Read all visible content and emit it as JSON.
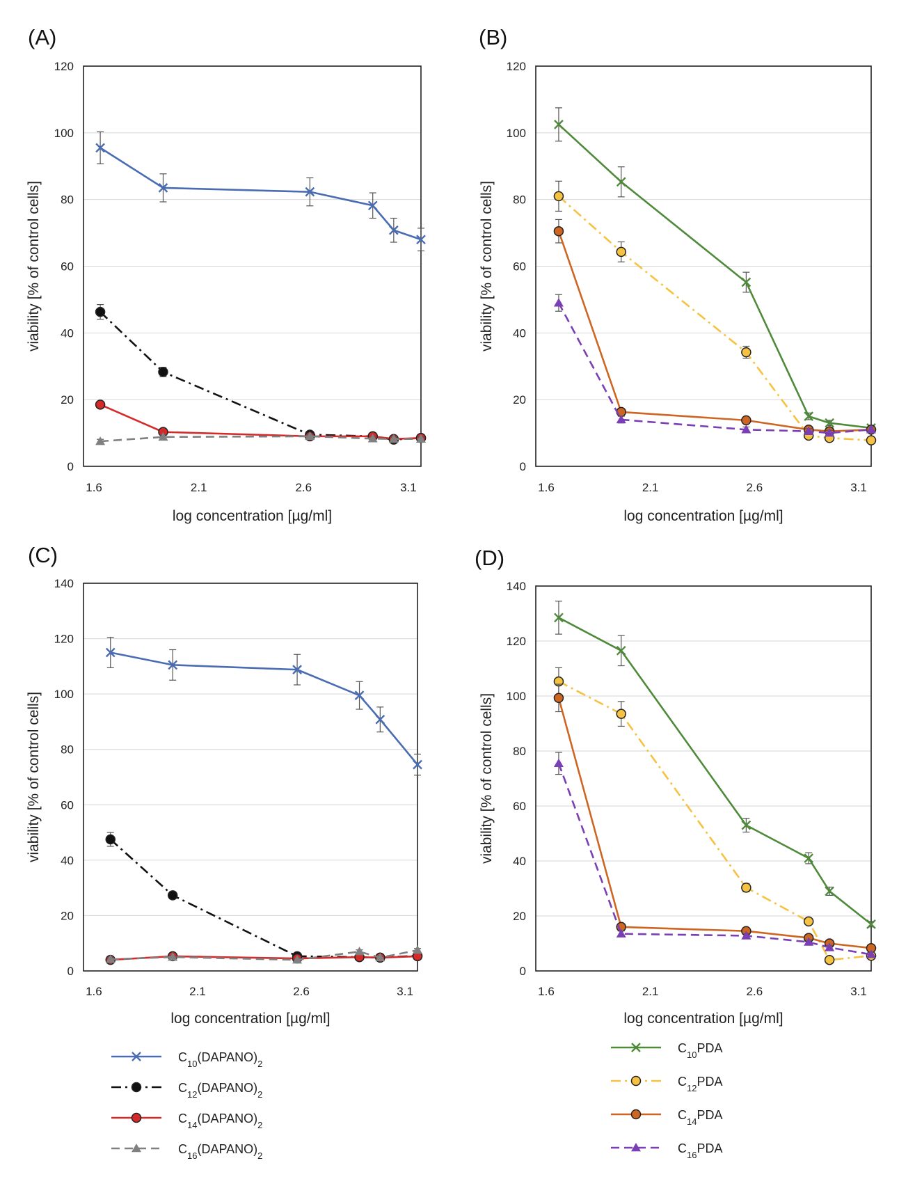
{
  "chart_data": [
    {
      "panel": "(A)",
      "type": "line",
      "xlabel": "log concentration [µg/ml]",
      "ylabel": "viability [% of control cells]",
      "xlim": [
        1.55,
        3.16
      ],
      "ylim": [
        0,
        120
      ],
      "xticks": [
        "1.6",
        "2.1",
        "2.6",
        "3.1"
      ],
      "yticks": [
        "0",
        "20",
        "40",
        "60",
        "80",
        "100",
        "120"
      ],
      "x": [
        1.63,
        1.93,
        2.63,
        2.93,
        3.03,
        3.16
      ],
      "grid": true,
      "series": [
        {
          "name": "C",
          "sub": "10",
          "suffix": "(DAPANO)",
          "suffix_sub": "2",
          "color": "#4a6cb3",
          "dash": "",
          "marker": "x",
          "values": [
            95.5,
            83.5,
            82.3,
            78.2,
            70.8,
            68.0
          ],
          "errors": [
            4.8,
            4.2,
            4.2,
            3.8,
            3.6,
            3.4
          ]
        },
        {
          "name": "C",
          "sub": "12",
          "suffix": "(DAPANO)",
          "suffix_sub": "2",
          "color": "#111111",
          "dash": "14 6 3 6",
          "marker": "circle",
          "values": [
            46.3,
            28.3,
            9.5,
            9.0,
            8.0,
            8.5
          ],
          "errors": [
            2.2,
            1.4,
            0.8,
            0.8,
            0.8,
            0.8
          ]
        },
        {
          "name": "C",
          "sub": "14",
          "suffix": "(DAPANO)",
          "suffix_sub": "2",
          "color": "#d42a2a",
          "dash": "",
          "marker": "circle",
          "values": [
            18.5,
            10.3,
            9.0,
            9.0,
            8.2,
            8.5
          ],
          "errors": [
            1.0,
            0.8,
            0.7,
            0.7,
            0.7,
            0.7
          ]
        },
        {
          "name": "C",
          "sub": "16",
          "suffix": "(DAPANO)",
          "suffix_sub": "2",
          "color": "#808080",
          "dash": "12 7",
          "marker": "triangle",
          "values": [
            7.5,
            8.8,
            9.0,
            8.3,
            8.2,
            8.2
          ],
          "errors": [
            0.6,
            0.6,
            0.6,
            0.6,
            0.6,
            0.6
          ]
        }
      ]
    },
    {
      "panel": "(B)",
      "type": "line",
      "xlabel": "log concentration [µg/ml]",
      "ylabel": "viability [% of control cells]",
      "xlim": [
        1.55,
        3.16
      ],
      "ylim": [
        0,
        120
      ],
      "xticks": [
        "1.6",
        "2.1",
        "2.6",
        "3.1"
      ],
      "yticks": [
        "0",
        "20",
        "40",
        "60",
        "80",
        "100",
        "120"
      ],
      "x": [
        1.66,
        1.96,
        2.56,
        2.86,
        2.96,
        3.16
      ],
      "grid": true,
      "series": [
        {
          "name": "C",
          "sub": "10",
          "suffix": "PDA",
          "suffix_sub": "",
          "color": "#4f8a3a",
          "dash": "",
          "marker": "x",
          "values": [
            102.5,
            85.3,
            55.2,
            15.0,
            13.0,
            11.5
          ],
          "errors": [
            5.0,
            4.5,
            3.0,
            1.0,
            0.8,
            0.8
          ]
        },
        {
          "name": "C",
          "sub": "12",
          "suffix": "PDA",
          "suffix_sub": "",
          "color": "#f5c242",
          "dash": "14 6 3 6",
          "marker": "circle",
          "values": [
            81.0,
            64.3,
            34.2,
            9.2,
            8.5,
            7.8
          ],
          "errors": [
            4.5,
            3.0,
            1.8,
            0.8,
            0.8,
            0.8
          ]
        },
        {
          "name": "C",
          "sub": "14",
          "suffix": "PDA",
          "suffix_sub": "",
          "color": "#cc6622",
          "dash": "",
          "marker": "circle",
          "values": [
            70.5,
            16.3,
            13.8,
            11.0,
            10.5,
            11.0
          ],
          "errors": [
            3.5,
            1.0,
            0.8,
            0.8,
            0.8,
            0.8
          ]
        },
        {
          "name": "C",
          "sub": "16",
          "suffix": "PDA",
          "suffix_sub": "",
          "color": "#7a3fb5",
          "dash": "12 7",
          "marker": "triangle",
          "values": [
            49.0,
            14.0,
            11.0,
            10.5,
            10.0,
            11.0
          ],
          "errors": [
            2.5,
            1.0,
            0.8,
            0.8,
            0.8,
            0.8
          ]
        }
      ]
    },
    {
      "panel": "(C)",
      "type": "line",
      "xlabel": "log concentration [µg/ml]",
      "ylabel": "viability [% of control cells]",
      "xlim": [
        1.55,
        3.16
      ],
      "ylim": [
        0,
        140
      ],
      "xticks": [
        "1.6",
        "2.1",
        "2.6",
        "3.1"
      ],
      "yticks": [
        "0",
        "20",
        "40",
        "60",
        "80",
        "100",
        "120",
        "140"
      ],
      "x": [
        1.68,
        1.98,
        2.58,
        2.88,
        2.98,
        3.16
      ],
      "grid": true,
      "series": [
        {
          "name": "C",
          "sub": "10",
          "suffix": "(DAPANO)",
          "suffix_sub": "2",
          "color": "#4a6cb3",
          "dash": "",
          "marker": "x",
          "values": [
            115.0,
            110.5,
            108.8,
            99.5,
            90.8,
            74.5
          ],
          "errors": [
            5.5,
            5.5,
            5.5,
            5.0,
            4.5,
            3.8
          ]
        },
        {
          "name": "C",
          "sub": "12",
          "suffix": "(DAPANO)",
          "suffix_sub": "2",
          "color": "#111111",
          "dash": "14 6 3 6",
          "marker": "circle",
          "values": [
            47.5,
            27.3,
            5.3,
            5.0,
            4.8,
            5.5
          ],
          "errors": [
            2.5,
            1.3,
            0.7,
            0.7,
            0.7,
            0.7
          ]
        },
        {
          "name": "C",
          "sub": "14",
          "suffix": "(DAPANO)",
          "suffix_sub": "2",
          "color": "#d42a2a",
          "dash": "",
          "marker": "circle",
          "values": [
            4.0,
            5.3,
            4.5,
            5.0,
            4.8,
            5.3
          ],
          "errors": [
            0.6,
            0.6,
            0.6,
            0.6,
            0.6,
            0.6
          ]
        },
        {
          "name": "C",
          "sub": "16",
          "suffix": "(DAPANO)",
          "suffix_sub": "2",
          "color": "#808080",
          "dash": "12 7",
          "marker": "triangle",
          "values": [
            4.2,
            5.0,
            4.0,
            7.0,
            4.8,
            7.5
          ],
          "errors": [
            0.6,
            0.6,
            0.6,
            0.6,
            0.6,
            0.6
          ]
        }
      ]
    },
    {
      "panel": "(D)",
      "type": "line",
      "xlabel": "log concentration [µg/ml]",
      "ylabel": "viability [% of control cells]",
      "xlim": [
        1.55,
        3.16
      ],
      "ylim": [
        0,
        140
      ],
      "xticks": [
        "1.6",
        "2.1",
        "2.6",
        "3.1"
      ],
      "yticks": [
        "0",
        "20",
        "40",
        "60",
        "80",
        "100",
        "120",
        "140"
      ],
      "x": [
        1.66,
        1.96,
        2.56,
        2.86,
        2.96,
        3.16
      ],
      "grid": true,
      "series": [
        {
          "name": "C",
          "sub": "10",
          "suffix": "PDA",
          "suffix_sub": "",
          "color": "#4f8a3a",
          "dash": "",
          "marker": "x",
          "values": [
            128.5,
            116.5,
            53.0,
            41.0,
            29.0,
            17.0
          ],
          "errors": [
            6.0,
            5.5,
            2.5,
            2.0,
            1.5,
            1.0
          ]
        },
        {
          "name": "C",
          "sub": "12",
          "suffix": "PDA",
          "suffix_sub": "",
          "color": "#f5c242",
          "dash": "14 6 3 6",
          "marker": "circle",
          "values": [
            105.3,
            93.5,
            30.3,
            18.0,
            4.0,
            5.5
          ],
          "errors": [
            5.0,
            4.5,
            1.5,
            1.0,
            0.6,
            0.6
          ]
        },
        {
          "name": "C",
          "sub": "14",
          "suffix": "PDA",
          "suffix_sub": "",
          "color": "#cc6622",
          "dash": "",
          "marker": "circle",
          "values": [
            99.3,
            16.0,
            14.5,
            12.0,
            10.0,
            8.3
          ],
          "errors": [
            5.0,
            1.0,
            0.8,
            0.8,
            0.8,
            0.8
          ]
        },
        {
          "name": "C",
          "sub": "16",
          "suffix": "PDA",
          "suffix_sub": "",
          "color": "#7a3fb5",
          "dash": "12 7",
          "marker": "triangle",
          "values": [
            75.5,
            13.5,
            12.8,
            10.5,
            8.5,
            6.0
          ],
          "errors": [
            4.0,
            1.0,
            0.8,
            0.8,
            0.8,
            0.8
          ]
        }
      ]
    }
  ]
}
